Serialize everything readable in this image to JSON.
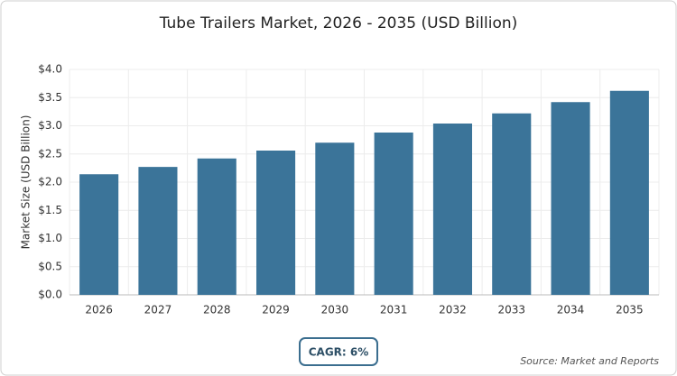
{
  "chart_data": {
    "type": "bar",
    "title": "Tube Trailers Market, 2026 - 2035 (USD Billion)",
    "y_label": "Market Size (USD Billion)",
    "categories": [
      "2026",
      "2027",
      "2028",
      "2029",
      "2030",
      "2031",
      "2032",
      "2033",
      "2034",
      "2035"
    ],
    "values": [
      2.14,
      2.27,
      2.42,
      2.56,
      2.7,
      2.88,
      3.04,
      3.22,
      3.42,
      3.62
    ],
    "color": "#3b7499",
    "ylim": [
      0,
      4
    ],
    "yticks": [
      {
        "value": 0,
        "label": "$0.0"
      },
      {
        "value": 0.5,
        "label": "$0.5"
      },
      {
        "value": 1,
        "label": "$1.0"
      },
      {
        "value": 1.5,
        "label": "$1.5"
      },
      {
        "value": 2,
        "label": "$2.0"
      },
      {
        "value": 2.5,
        "label": "$2.5"
      },
      {
        "value": 3,
        "label": "$3.0"
      },
      {
        "value": 3.5,
        "label": "$3.5"
      },
      {
        "value": 4,
        "label": "$4.0"
      }
    ],
    "grid": true,
    "badge": "CAGR: 6%",
    "source": "Source: Market and Reports"
  }
}
